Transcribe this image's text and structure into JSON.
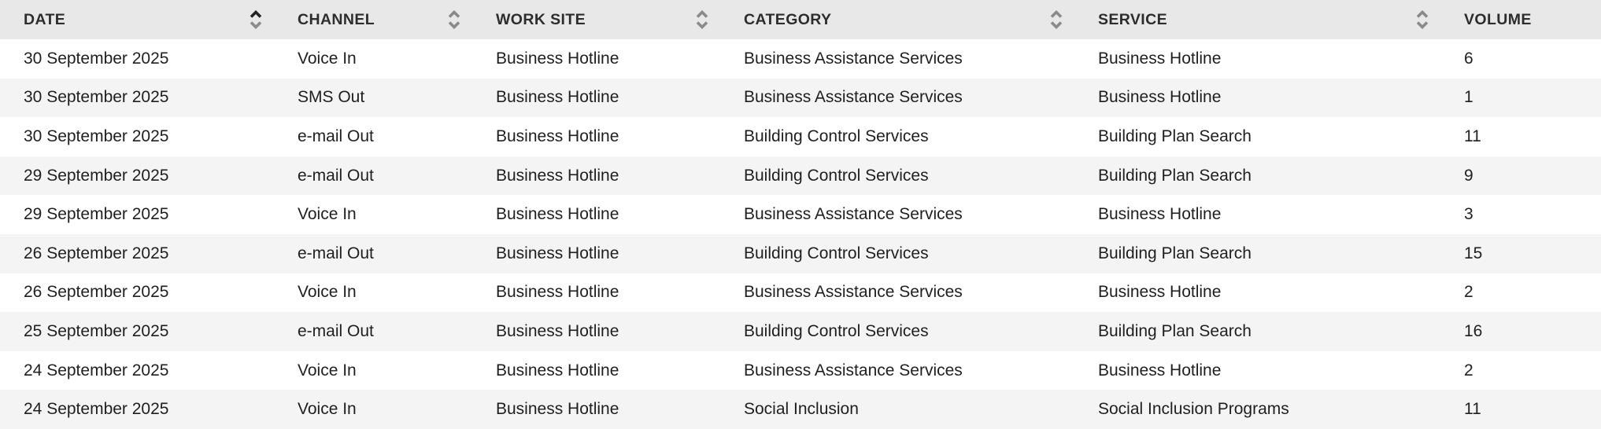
{
  "table": {
    "columns": [
      {
        "label": "DATE",
        "sort_icon": "sort-arrows-icon",
        "sort_state": "up-active"
      },
      {
        "label": "CHANNEL",
        "sort_icon": "sort-arrows-icon",
        "sort_state": "neutral"
      },
      {
        "label": "WORK SITE",
        "sort_icon": "sort-arrows-icon",
        "sort_state": "neutral"
      },
      {
        "label": "CATEGORY",
        "sort_icon": "sort-arrows-icon",
        "sort_state": "neutral"
      },
      {
        "label": "SERVICE",
        "sort_icon": "sort-arrows-icon",
        "sort_state": "neutral"
      },
      {
        "label": "VOLUME",
        "sort_icon": "none",
        "sort_state": "none"
      }
    ],
    "rows": [
      [
        "30 September 2025",
        "Voice In",
        "Business Hotline",
        "Business Assistance Services",
        "Business Hotline",
        "6"
      ],
      [
        "30 September 2025",
        "SMS Out",
        "Business Hotline",
        "Business Assistance Services",
        "Business Hotline",
        "1"
      ],
      [
        "30 September 2025",
        "e-mail Out",
        "Business Hotline",
        "Building Control Services",
        "Building Plan Search",
        "11"
      ],
      [
        "29 September 2025",
        "e-mail Out",
        "Business Hotline",
        "Building Control Services",
        "Building Plan Search",
        "9"
      ],
      [
        "29 September 2025",
        "Voice In",
        "Business Hotline",
        "Business Assistance Services",
        "Business Hotline",
        "3"
      ],
      [
        "26 September 2025",
        "e-mail Out",
        "Business Hotline",
        "Building Control Services",
        "Building Plan Search",
        "15"
      ],
      [
        "26 September 2025",
        "Voice In",
        "Business Hotline",
        "Business Assistance Services",
        "Business Hotline",
        "2"
      ],
      [
        "25 September 2025",
        "e-mail Out",
        "Business Hotline",
        "Building Control Services",
        "Building Plan Search",
        "16"
      ],
      [
        "24 September 2025",
        "Voice In",
        "Business Hotline",
        "Business Assistance Services",
        "Business Hotline",
        "2"
      ],
      [
        "24 September 2025",
        "Voice In",
        "Business Hotline",
        "Social Inclusion",
        "Social Inclusion Programs",
        "11"
      ]
    ],
    "colors": {
      "header_bg": "#e8e8e8",
      "row_alt_bg": "#f4f4f4",
      "row_bg": "#ffffff",
      "header_text": "#2d2d2d",
      "cell_text": "#1f1f1f",
      "sort_icon_gray": "#8a8a8a",
      "sort_icon_active": "#232323"
    }
  }
}
